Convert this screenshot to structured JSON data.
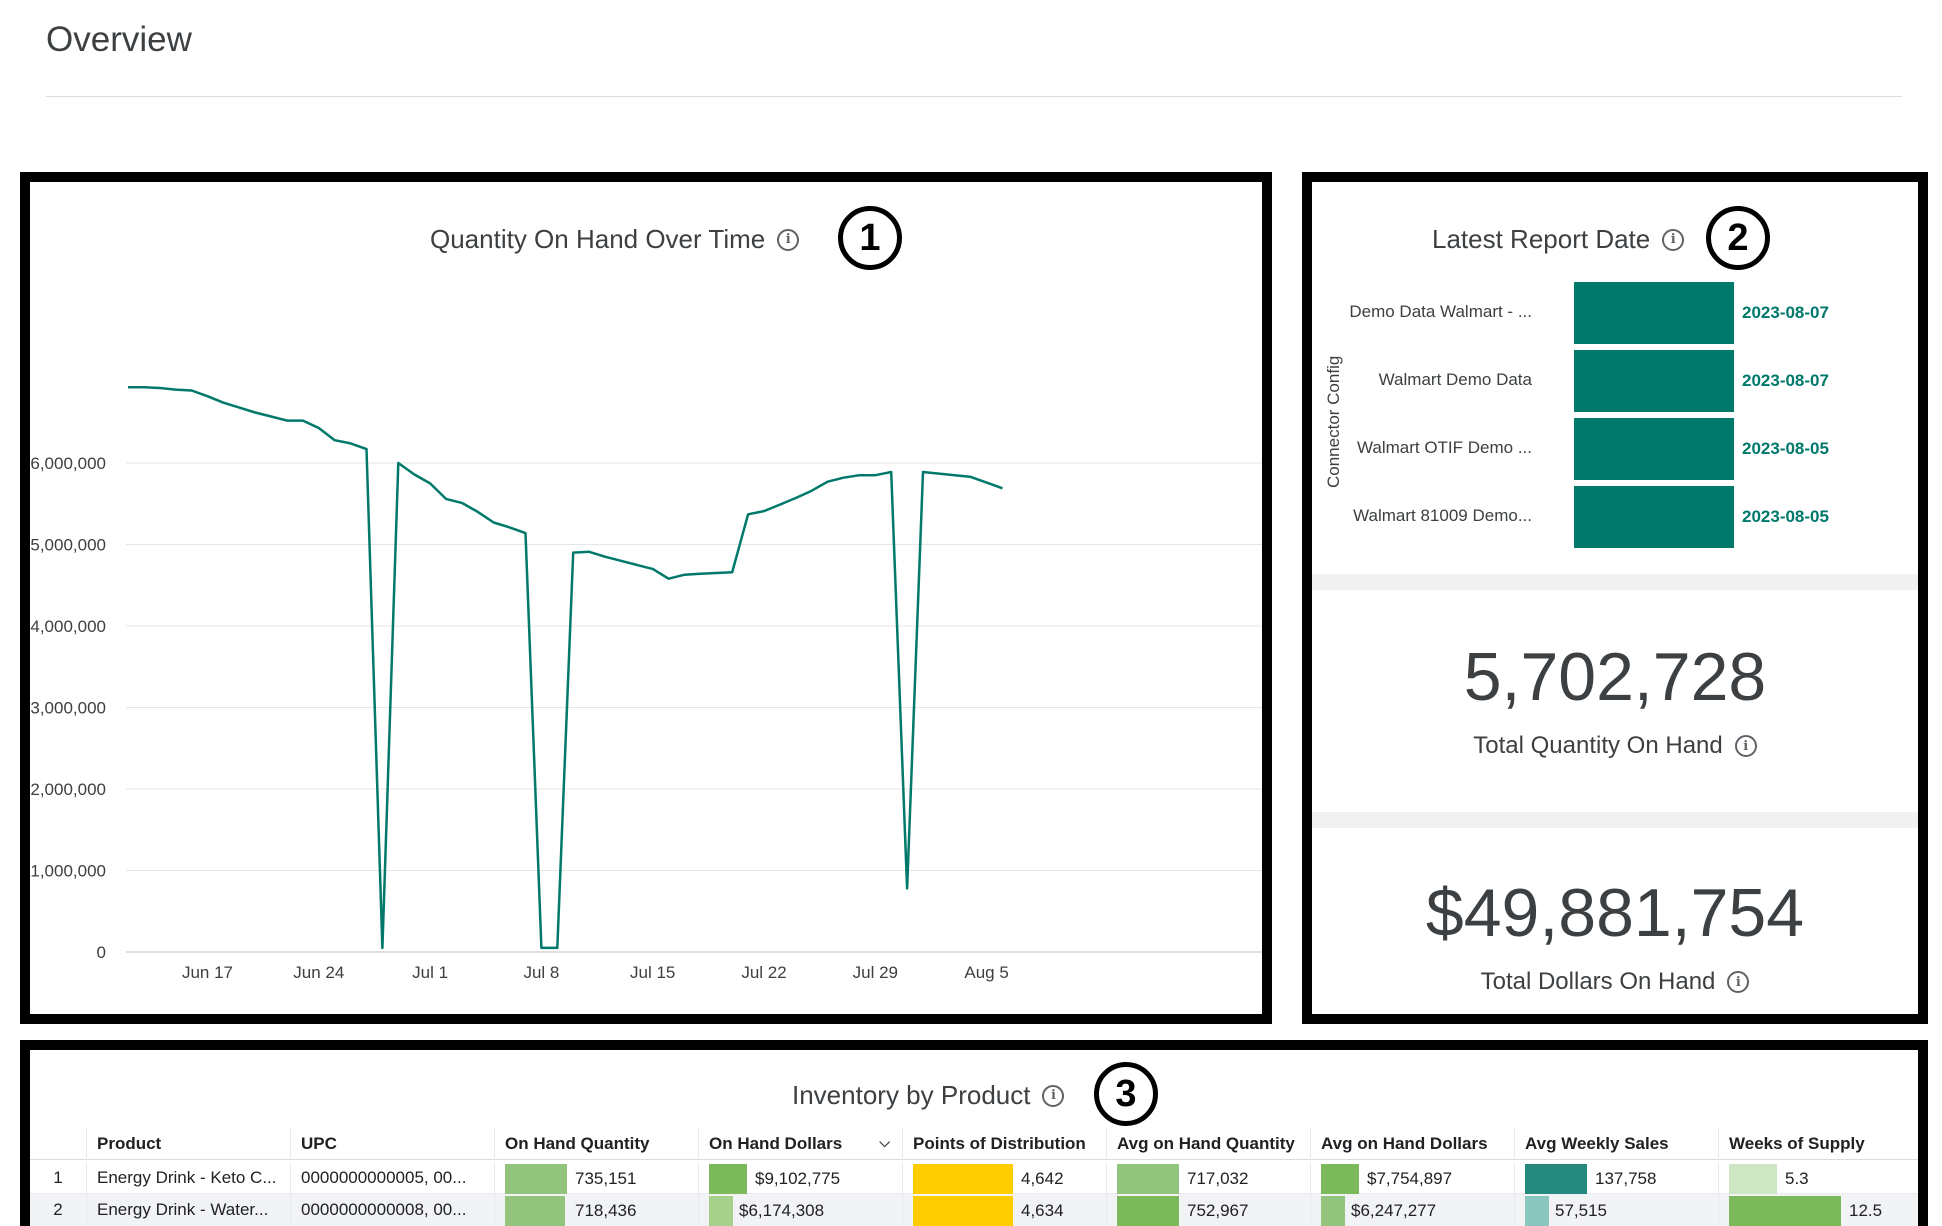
{
  "page": {
    "title": "Overview"
  },
  "chart": {
    "title": "Quantity On Hand Over Time",
    "badge": "1",
    "line_color": "#00796b"
  },
  "chart_data": {
    "type": "line",
    "title": "Quantity On Hand Over Time",
    "xlabel": "",
    "ylabel": "",
    "x_ticks": [
      "Jun 17",
      "Jun 24",
      "Jul 1",
      "Jul 8",
      "Jul 15",
      "Jul 22",
      "Jul 29",
      "Aug 5"
    ],
    "y_ticks": [
      "0",
      "1,000,000",
      "2,000,000",
      "3,000,000",
      "4,000,000",
      "5,000,000",
      "6,000,000"
    ],
    "ylim": [
      0,
      7000000
    ],
    "grid": true,
    "series": [
      {
        "x": [
          "2023-06-12",
          "2023-06-13",
          "2023-06-14",
          "2023-06-15",
          "2023-06-16",
          "2023-06-17",
          "2023-06-18",
          "2023-06-19",
          "2023-06-20",
          "2023-06-21",
          "2023-06-22",
          "2023-06-23",
          "2023-06-24",
          "2023-06-25",
          "2023-06-26",
          "2023-06-27",
          "2023-06-28",
          "2023-06-29",
          "2023-06-30",
          "2023-07-01",
          "2023-07-02",
          "2023-07-03",
          "2023-07-04",
          "2023-07-05",
          "2023-07-06",
          "2023-07-07",
          "2023-07-08",
          "2023-07-09",
          "2023-07-10",
          "2023-07-11",
          "2023-07-12",
          "2023-07-13",
          "2023-07-14",
          "2023-07-15",
          "2023-07-16",
          "2023-07-17",
          "2023-07-18",
          "2023-07-19",
          "2023-07-20",
          "2023-07-21",
          "2023-07-22",
          "2023-07-23",
          "2023-07-24",
          "2023-07-25",
          "2023-07-26",
          "2023-07-27",
          "2023-07-28",
          "2023-07-29",
          "2023-07-30",
          "2023-07-31",
          "2023-08-01",
          "2023-08-02",
          "2023-08-03",
          "2023-08-04",
          "2023-08-05",
          "2023-08-06"
        ],
        "values": [
          6930000,
          6930000,
          6920000,
          6900000,
          6890000,
          6820000,
          6740000,
          6680000,
          6620000,
          6570000,
          6520000,
          6520000,
          6430000,
          6280000,
          6240000,
          6170000,
          50000,
          6000000,
          5860000,
          5750000,
          5560000,
          5510000,
          5400000,
          5270000,
          5210000,
          5140000,
          50000,
          50000,
          4900000,
          4910000,
          4850000,
          4800000,
          4750000,
          4700000,
          4580000,
          4630000,
          4640000,
          4650000,
          4660000,
          5370000,
          5410000,
          5490000,
          5570000,
          5660000,
          5770000,
          5820000,
          5850000,
          5850000,
          5890000,
          780000,
          5890000,
          5870000,
          5850000,
          5830000,
          5760000,
          5690000
        ]
      }
    ]
  },
  "report": {
    "title": "Latest Report Date",
    "badge": "2",
    "axis_title": "Connector Config",
    "bar_color": "#00796b",
    "rows": [
      {
        "label": "Demo Data Walmart - ...",
        "value": "2023-08-07"
      },
      {
        "label": "Walmart Demo Data",
        "value": "2023-08-07"
      },
      {
        "label": "Walmart OTIF Demo ...",
        "value": "2023-08-05"
      },
      {
        "label": "Walmart 81009 Demo...",
        "value": "2023-08-05"
      }
    ]
  },
  "kpis": {
    "quantity": {
      "value": "5,702,728",
      "label": "Total Quantity On Hand"
    },
    "dollars": {
      "value": "$49,881,754",
      "label": "Total Dollars On Hand"
    }
  },
  "table": {
    "title": "Inventory by Product",
    "badge": "3",
    "sort_icon": "chevron-down-icon",
    "columns": [
      "Product",
      "UPC",
      "On Hand Quantity",
      "On Hand Dollars",
      "Points of Distribution",
      "Avg on Hand Quantity",
      "Avg on Hand Dollars",
      "Avg Weekly Sales",
      "Weeks of Supply"
    ],
    "rows": [
      {
        "num": "1",
        "product": "Energy Drink - Keto C...",
        "upc": "0000000000005, 00...",
        "on_hand_qty": "735,151",
        "on_hand_dollars": "$9,102,775",
        "points_dist": "4,642",
        "avg_qty": "717,032",
        "avg_dollars": "$7,754,897",
        "avg_weekly_sales": "137,758",
        "weeks_supply": "5.3"
      },
      {
        "num": "2",
        "product": "Energy Drink - Water...",
        "upc": "0000000000008, 00...",
        "on_hand_qty": "718,436",
        "on_hand_dollars": "$6,174,308",
        "points_dist": "4,634",
        "avg_qty": "752,967",
        "avg_dollars": "$6,247,277",
        "avg_weekly_sales": "57,515",
        "weeks_supply": "12.5"
      }
    ]
  }
}
